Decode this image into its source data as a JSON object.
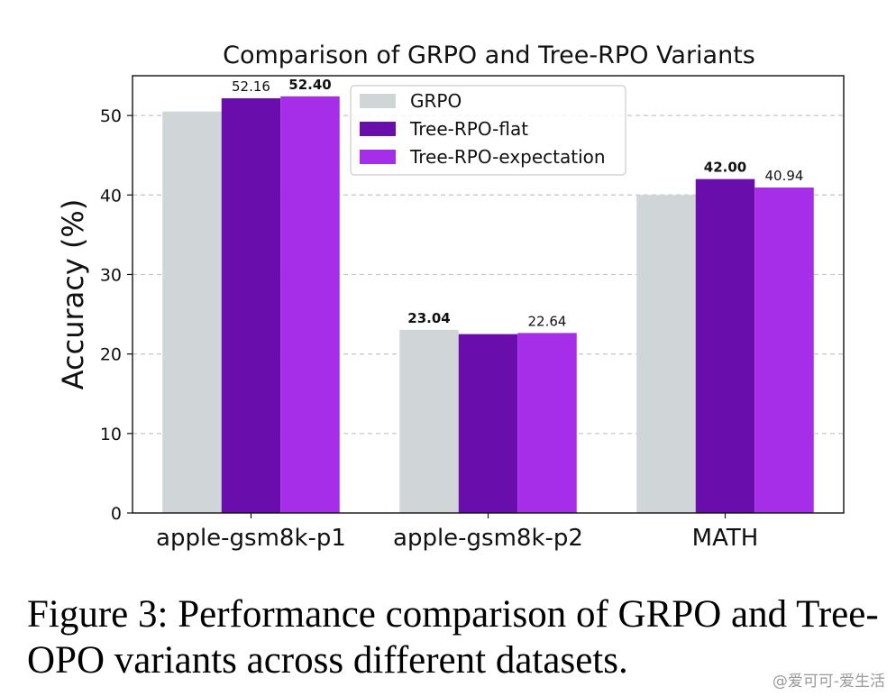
{
  "chart_data": {
    "type": "bar",
    "title": "Comparison of GRPO and Tree-RPO Variants",
    "ylabel": "Accuracy (%)",
    "xlabel": "",
    "categories": [
      "apple-gsm8k-p1",
      "apple-gsm8k-p2",
      "MATH"
    ],
    "ylim": [
      0,
      55
    ],
    "yticks": [
      "0",
      "10",
      "20",
      "30",
      "40",
      "50"
    ],
    "grid": "horizontal dashed",
    "legend_position": "top-center",
    "series": [
      {
        "name": "GRPO",
        "color": "#d0d5d7",
        "values": [
          50.5,
          23.04,
          40.0
        ]
      },
      {
        "name": "Tree-RPO-flat",
        "color": "#6a0dad",
        "values": [
          52.16,
          22.5,
          42.0
        ]
      },
      {
        "name": "Tree-RPO-expectation",
        "color": "#a62ee8",
        "values": [
          52.4,
          22.64,
          40.94
        ]
      }
    ],
    "value_labels": [
      {
        "category": "apple-gsm8k-p1",
        "series": "Tree-RPO-flat",
        "text": "52.16",
        "bold": false
      },
      {
        "category": "apple-gsm8k-p1",
        "series": "Tree-RPO-expectation",
        "text": "52.40",
        "bold": true
      },
      {
        "category": "apple-gsm8k-p2",
        "series": "GRPO",
        "text": "23.04",
        "bold": true
      },
      {
        "category": "apple-gsm8k-p2",
        "series": "Tree-RPO-expectation",
        "text": "22.64",
        "bold": false
      },
      {
        "category": "MATH",
        "series": "Tree-RPO-flat",
        "text": "42.00",
        "bold": true
      },
      {
        "category": "MATH",
        "series": "Tree-RPO-expectation",
        "text": "40.94",
        "bold": false
      }
    ]
  },
  "caption": "Figure 3: Performance comparison of GRPO and Tree-OPO variants across different datasets.",
  "watermark": "@爱可可-爱生活"
}
